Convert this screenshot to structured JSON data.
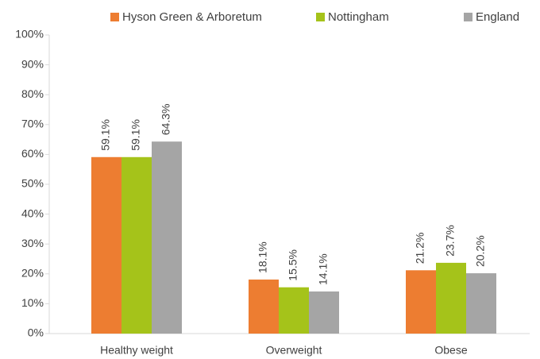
{
  "chart_data": {
    "type": "bar",
    "categories": [
      "Healthy weight",
      "Overweight",
      "Obese"
    ],
    "series": [
      {
        "name": "Hyson Green & Arboretum",
        "color": "#ed7d31",
        "values": [
          59.1,
          18.1,
          21.2
        ],
        "value_labels": [
          "59.1%",
          "18.1%",
          "21.2%"
        ]
      },
      {
        "name": "Nottingham",
        "color": "#a5c31a",
        "values": [
          59.1,
          15.5,
          23.7
        ],
        "value_labels": [
          "59.1%",
          "15.5%",
          "23.7%"
        ]
      },
      {
        "name": "England",
        "color": "#a5a5a5",
        "values": [
          64.3,
          14.1,
          20.2
        ],
        "value_labels": [
          "64.3%",
          "14.1%",
          "20.2%"
        ]
      }
    ],
    "ylim": [
      0,
      100
    ],
    "yticks": [
      {
        "value": 0,
        "label": "0%"
      },
      {
        "value": 10,
        "label": "10%"
      },
      {
        "value": 20,
        "label": "20%"
      },
      {
        "value": 30,
        "label": "30%"
      },
      {
        "value": 40,
        "label": "40%"
      },
      {
        "value": 50,
        "label": "50%"
      },
      {
        "value": 60,
        "label": "60%"
      },
      {
        "value": 70,
        "label": "70%"
      },
      {
        "value": 80,
        "label": "80%"
      },
      {
        "value": 90,
        "label": "90%"
      },
      {
        "value": 100,
        "label": "100%"
      }
    ],
    "legend": "top"
  }
}
